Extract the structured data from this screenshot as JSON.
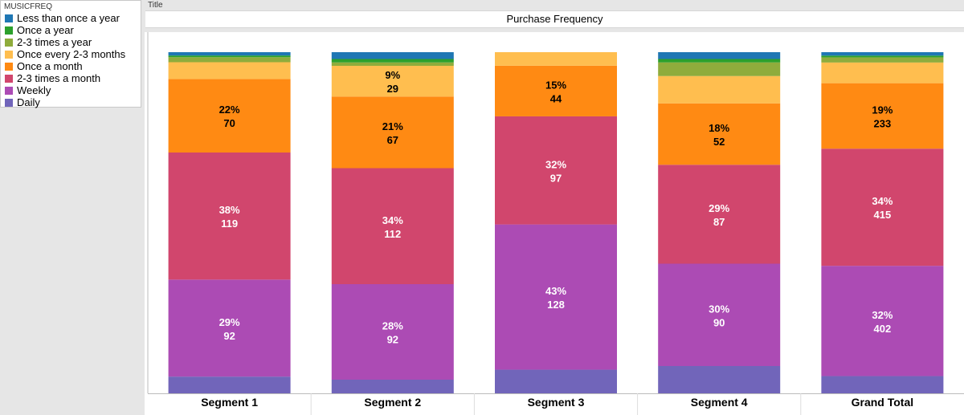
{
  "legend": {
    "title": "MUSICFREQ",
    "items": [
      {
        "label": "Less than once a year",
        "color": "#1f77b4"
      },
      {
        "label": "Once a year",
        "color": "#2ca02c"
      },
      {
        "label": "2-3 times a year",
        "color": "#8fac3c"
      },
      {
        "label": "Once every 2-3 months",
        "color": "#ffbe4f"
      },
      {
        "label": "Once a month",
        "color": "#ff8a13"
      },
      {
        "label": "2-3 times a month",
        "color": "#d1466d"
      },
      {
        "label": "Weekly",
        "color": "#ac4bb4"
      },
      {
        "label": "Daily",
        "color": "#7165ba"
      }
    ]
  },
  "title_caption": "Title",
  "chart_title": "Purchase Frequency",
  "chart_data": {
    "type": "bar",
    "stacked": true,
    "normalized": true,
    "categories": [
      "Segment 1",
      "Segment 2",
      "Segment 3",
      "Segment 4",
      "Grand Total"
    ],
    "series": [
      {
        "name": "Daily",
        "color": "#7165ba",
        "percent": [
          5.0,
          4.0,
          7.0,
          8.0,
          5.0
        ]
      },
      {
        "name": "Weekly",
        "color": "#ac4bb4",
        "percent": [
          29,
          28,
          43,
          30,
          32
        ],
        "labels": [
          "29%",
          "28%",
          "43%",
          "30%",
          "32%"
        ],
        "values": [
          92,
          92,
          128,
          90,
          402
        ]
      },
      {
        "name": "2-3 times a month",
        "color": "#d1466d",
        "percent": [
          38,
          34,
          32,
          29,
          34
        ],
        "labels": [
          "38%",
          "34%",
          "32%",
          "29%",
          "34%"
        ],
        "values": [
          119,
          112,
          97,
          87,
          415
        ]
      },
      {
        "name": "Once a month",
        "color": "#ff8a13",
        "percent": [
          22,
          21,
          15,
          18,
          19
        ],
        "labels": [
          "22%",
          "21%",
          "15%",
          "18%",
          "19%"
        ],
        "values": [
          70,
          67,
          44,
          52,
          233
        ]
      },
      {
        "name": "Once every 2-3 months",
        "color": "#ffbe4f",
        "percent": [
          5.0,
          9,
          4.0,
          8.0,
          6.0
        ],
        "labels": [
          null,
          "9%",
          null,
          null,
          null
        ],
        "values": [
          null,
          29,
          null,
          null,
          null
        ]
      },
      {
        "name": "2-3 times a year",
        "color": "#8fac3c",
        "percent": [
          1.5,
          1.0,
          0,
          4.0,
          1.5
        ]
      },
      {
        "name": "Once a year",
        "color": "#2ca02c",
        "percent": [
          0.5,
          1.0,
          0,
          1.0,
          0.5
        ]
      },
      {
        "name": "Less than once a year",
        "color": "#1f77b4",
        "percent": [
          1.0,
          2.0,
          0,
          2.0,
          1.0
        ]
      }
    ],
    "ylim": [
      0,
      100
    ],
    "legend_position": "top-left",
    "grid": false
  }
}
